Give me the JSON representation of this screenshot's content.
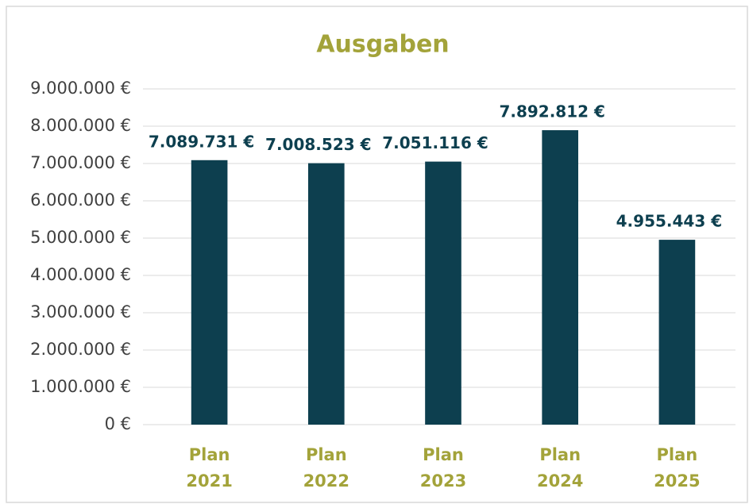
{
  "chart_data": {
    "type": "bar",
    "title": "Ausgaben",
    "categories": [
      "Plan 2021",
      "Plan 2022",
      "Plan 2023",
      "Plan 2024",
      "Plan 2025"
    ],
    "values": [
      7089731,
      7008523,
      7051116,
      7892812,
      4955443
    ],
    "value_labels": [
      "7.089.731 €",
      "7.008.523 €",
      "7.051.116 €",
      "7.892.812 €",
      "4.955.443 €"
    ],
    "color": "#0d3f4f",
    "ylim": [
      0,
      9000000
    ],
    "yticks": [
      {
        "value": 0,
        "label": "0 €"
      },
      {
        "value": 1000000,
        "label": "1.000.000 €"
      },
      {
        "value": 2000000,
        "label": "2.000.000 €"
      },
      {
        "value": 3000000,
        "label": "3.000.000 €"
      },
      {
        "value": 4000000,
        "label": "4.000.000 €"
      },
      {
        "value": 5000000,
        "label": "5.000.000 €"
      },
      {
        "value": 6000000,
        "label": "6.000.000 €"
      },
      {
        "value": 7000000,
        "label": "7.000.000 €"
      },
      {
        "value": 8000000,
        "label": "8.000.000 €"
      },
      {
        "value": 9000000,
        "label": "9.000.000 €"
      }
    ],
    "grid": true
  }
}
